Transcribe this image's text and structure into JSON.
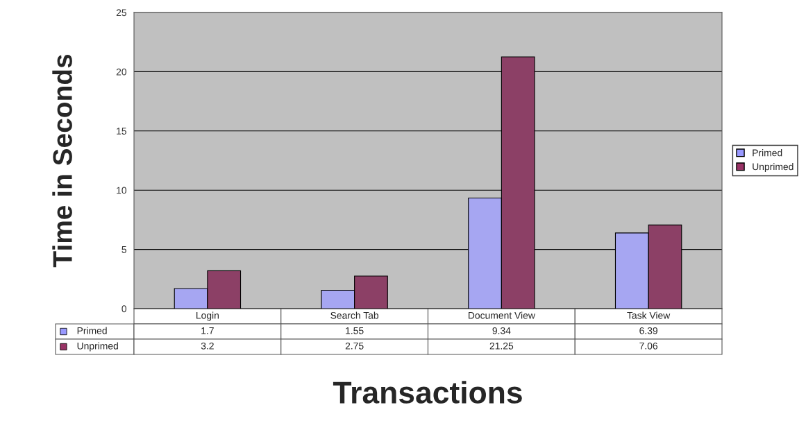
{
  "chart_data": {
    "type": "bar",
    "xlabel": "Transactions",
    "ylabel": "Time in Seconds",
    "categories": [
      "Login",
      "Search Tab",
      "Document View",
      "Task View"
    ],
    "series": [
      {
        "name": "Primed",
        "color": "#9999ff",
        "values": [
          1.7,
          1.55,
          9.34,
          6.39
        ]
      },
      {
        "name": "Unprimed",
        "color": "#993366",
        "values": [
          3.2,
          2.75,
          21.25,
          7.06
        ]
      }
    ],
    "ylim": [
      0,
      25
    ],
    "yticks": [
      0,
      5,
      10,
      15,
      20,
      25
    ],
    "grid": "y",
    "legend": "right",
    "data_labels": true
  }
}
